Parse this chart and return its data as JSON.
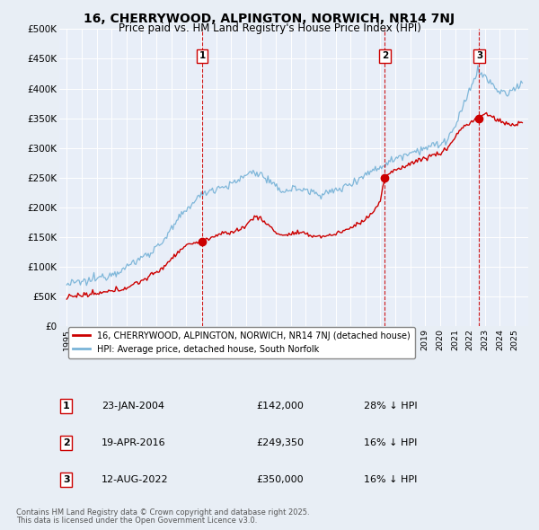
{
  "title": "16, CHERRYWOOD, ALPINGTON, NORWICH, NR14 7NJ",
  "subtitle": "Price paid vs. HM Land Registry's House Price Index (HPI)",
  "bg_color": "#e8eef5",
  "plot_bg_color": "#e8eef8",
  "grid_color": "#ffffff",
  "hpi_color": "#7ab4d8",
  "price_color": "#cc0000",
  "vline_color": "#cc0000",
  "dot_color": "#cc0000",
  "ylim": [
    0,
    500000
  ],
  "yticks": [
    0,
    50000,
    100000,
    150000,
    200000,
    250000,
    300000,
    350000,
    400000,
    450000,
    500000
  ],
  "transactions": [
    {
      "num": 1,
      "date": "23-JAN-2004",
      "price": 142000,
      "pct": "28%",
      "x": 2004.07
    },
    {
      "num": 2,
      "date": "19-APR-2016",
      "price": 249350,
      "pct": "16%",
      "x": 2016.3
    },
    {
      "num": 3,
      "date": "12-AUG-2022",
      "price": 350000,
      "pct": "16%",
      "x": 2022.62
    }
  ],
  "legend_entry1": "16, CHERRYWOOD, ALPINGTON, NORWICH, NR14 7NJ (detached house)",
  "legend_entry2": "HPI: Average price, detached house, South Norfolk",
  "footer1": "Contains HM Land Registry data © Crown copyright and database right 2025.",
  "footer2": "This data is licensed under the Open Government Licence v3.0.",
  "xlim": [
    1994.5,
    2025.9
  ],
  "xticks": [
    1995,
    1996,
    1997,
    1998,
    1999,
    2000,
    2001,
    2002,
    2003,
    2004,
    2005,
    2006,
    2007,
    2008,
    2009,
    2010,
    2011,
    2012,
    2013,
    2014,
    2015,
    2016,
    2017,
    2018,
    2019,
    2020,
    2021,
    2022,
    2023,
    2024,
    2025
  ]
}
